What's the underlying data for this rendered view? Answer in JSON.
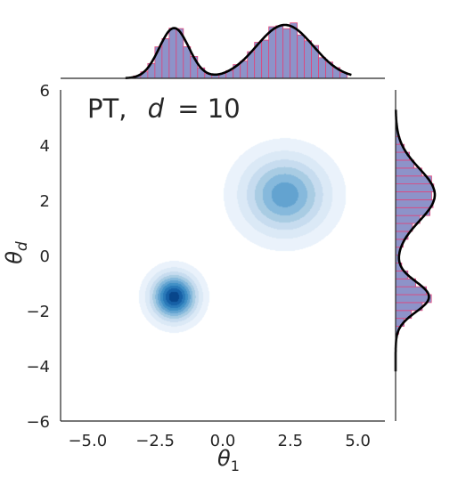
{
  "chart_data": {
    "type": "kde-joint",
    "annotation": "PT,  d = 10",
    "annotation_parts": {
      "prefix": "PT,",
      "var": "d",
      "rest": "= 10"
    },
    "xlabel": {
      "base": "θ",
      "sub": "1"
    },
    "ylabel": {
      "base": "θ",
      "sub": "d"
    },
    "xlim": [
      -6,
      6
    ],
    "ylim": [
      -6,
      6
    ],
    "xticks": [
      -5.0,
      -2.5,
      0.0,
      2.5,
      5.0
    ],
    "xtick_labels": [
      "−5.0",
      "−2.5",
      "0.0",
      "2.5",
      "5.0"
    ],
    "yticks": [
      -6,
      -4,
      -2,
      0,
      2,
      4,
      6
    ],
    "ytick_labels": [
      "−6",
      "−4",
      "−2",
      "0",
      "2",
      "4",
      "6"
    ],
    "modes": [
      {
        "mean": [
          -1.8,
          -1.5
        ],
        "sd": [
          0.55,
          0.55
        ],
        "weight": 0.33
      },
      {
        "mean": [
          2.3,
          2.2
        ],
        "sd": [
          1.05,
          0.95
        ],
        "weight": 0.67
      }
    ],
    "levels": [
      0.06,
      0.15,
      0.25,
      0.35,
      0.45,
      0.55,
      0.65,
      0.75,
      0.85,
      0.94
    ],
    "level_colors": [
      "#eaf2fb",
      "#dbe9f6",
      "#c7dcef",
      "#a9cce3",
      "#86b9dc",
      "#63a3d0",
      "#4190c6",
      "#2a79b8",
      "#1660a6",
      "#08468b"
    ],
    "hist_fill": "#8d93c9",
    "hist_edge": "#e0457b",
    "kde_line": "#000000",
    "hist_bins": 30,
    "grid": false
  }
}
